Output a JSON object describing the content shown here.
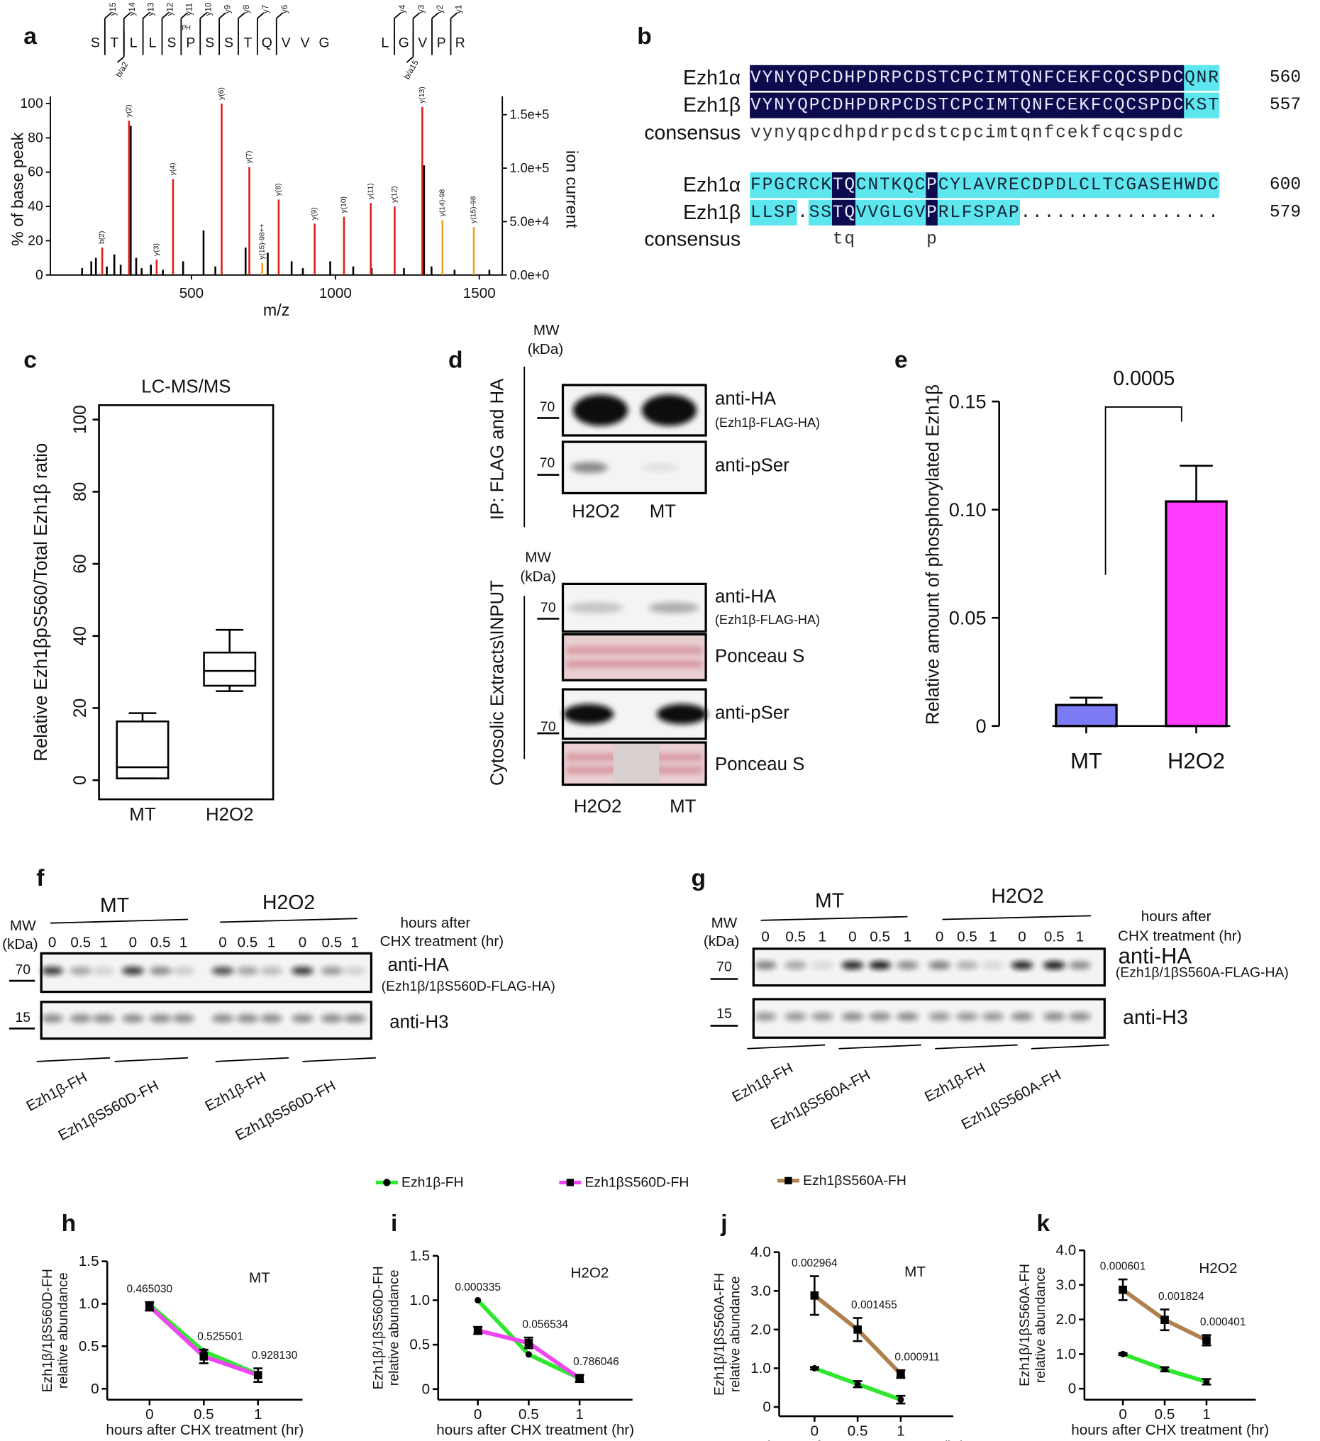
{
  "panel_labels": [
    "a",
    "b",
    "c",
    "d",
    "e",
    "f",
    "g",
    "h",
    "i",
    "j",
    "k"
  ],
  "peptide": {
    "residues": [
      "S",
      "T",
      "L",
      "L",
      "S",
      "P",
      "S",
      "S",
      "T",
      "Q",
      "V",
      "V",
      "G",
      "L",
      "G",
      "V",
      "P",
      "R"
    ],
    "y_ions": [
      "y15",
      "y14",
      "y13",
      "y12",
      "y11",
      "y10",
      "y9",
      "y8",
      "y7",
      "y6",
      "y4",
      "y3",
      "y2",
      "y1"
    ],
    "b_ions": [
      "b/a2",
      "b/a15"
    ],
    "modification": "PH"
  },
  "alignment": {
    "blocks": [
      {
        "rows": [
          {
            "name": "Ezh1α",
            "sequence": "VYNYQPCDHPDRPCDSTCPCIMTQNFCEKFCQCSPDCQNR",
            "end": 560
          },
          {
            "name": "Ezh1β",
            "sequence": "VYNYQPCDHPDRPCDSTCPCIMTQNFCEKFCQCSPDCKST",
            "end": 557
          },
          {
            "name": "consensus",
            "sequence": "vynyqpcdhpdrpcdstcpcimtqnfcekfcqcspdc"
          }
        ]
      },
      {
        "rows": [
          {
            "name": "Ezh1α",
            "sequence": "FPGCRCKTQCNTKQCPCYLAVRECDPDLCLTCGASEHWDC",
            "end": 600
          },
          {
            "name": "Ezh1β",
            "sequence": "LLSP.SSTQVVGLGVPRLFSPAP.................",
            "end": 579
          },
          {
            "name": "consensus",
            "sequence": "       tq      p"
          }
        ]
      }
    ]
  },
  "panel_d": {
    "ip": {
      "mw": "MW",
      "unit": "(kDa)",
      "label": "IP: FLAG and HA",
      "blots": [
        {
          "marker": "70",
          "label": "anti-HA",
          "sublabel": "(Ezh1β-FLAG-HA)"
        },
        {
          "marker": "70",
          "label": "anti-pSer"
        }
      ],
      "lanes": [
        "H2O2",
        "MT"
      ]
    },
    "input": {
      "mw": "MW",
      "unit": "(kDa)",
      "label": "Cytosolic Extracts\\INPUT",
      "blots": [
        {
          "marker": "70",
          "label": "anti-HA",
          "sublabel": "(Ezh1β-FLAG-HA)"
        },
        {
          "label": "Ponceau S"
        },
        {
          "marker": "70",
          "label": "anti-pSer"
        },
        {
          "label": "Ponceau S"
        }
      ],
      "lanes": [
        "H2O2",
        "MT"
      ]
    }
  },
  "panel_f": {
    "conditions": [
      "MT",
      "H2O2"
    ],
    "time_label": [
      "hours after",
      "CHX treatment (hr)"
    ],
    "mw": "MW",
    "unit": "(kDa)",
    "lanes": [
      "0",
      "0.5",
      "1",
      "0",
      "0.5",
      "1",
      "0",
      "0.5",
      "1",
      "0",
      "0.5",
      "1"
    ],
    "blots": [
      {
        "marker": "70",
        "label": "anti-HA",
        "sublabel": "(Ezh1β/1βS560D-FLAG-HA)"
      },
      {
        "marker": "15",
        "label": "anti-H3"
      }
    ],
    "groups": [
      "Ezh1β-FH",
      "Ezh1βS560D-FH",
      "Ezh1β-FH",
      "Ezh1βS560D-FH"
    ]
  },
  "panel_g": {
    "conditions": [
      "MT",
      "H2O2"
    ],
    "time_label": [
      "hours after",
      "CHX treatment (hr)"
    ],
    "mw": "MW",
    "unit": "(kDa)",
    "lanes": [
      "0",
      "0.5",
      "1",
      "0",
      "0.5",
      "1",
      "0",
      "0.5",
      "1",
      "0",
      "0.5",
      "1"
    ],
    "blots": [
      {
        "marker": "70",
        "label": "anti-HA",
        "sublabel": "(Ezh1β/1βS560A-FLAG-HA)"
      },
      {
        "marker": "15",
        "label": "anti-H3"
      }
    ],
    "groups": [
      "Ezh1β-FH",
      "Ezh1βS560A-FH",
      "Ezh1β-FH",
      "Ezh1βS560A-FH"
    ]
  },
  "legend": {
    "entries": [
      {
        "name": "Ezh1β-FH",
        "color": "#2ee82e",
        "marker": "circle"
      },
      {
        "name": "Ezh1βS560D-FH",
        "color": "#f046f0",
        "marker": "square"
      },
      {
        "name": "Ezh1βS560A-FH",
        "color": "#b07f4e",
        "marker": "square"
      }
    ]
  },
  "chart_data": [
    {
      "type": "spectrum",
      "xlabel": "m/z",
      "ylabel": "% of base peak",
      "y2label": "ion current",
      "xlim": [
        10,
        1580
      ],
      "xticks": [
        500,
        1000,
        1500
      ],
      "ylim": [
        0,
        100
      ],
      "yticks": [
        0,
        20,
        40,
        60,
        80,
        100
      ],
      "y2lim": [
        0,
        160400
      ],
      "y2ticks": [
        {
          "value": 0,
          "label": "0.0e+0"
        },
        {
          "value": 50000,
          "label": "5.0e+4"
        },
        {
          "value": 100000,
          "label": "1.0e+5"
        },
        {
          "value": 150000,
          "label": "1.5e+5"
        }
      ],
      "series": [
        {
          "color": "#000000",
          "x": [
            120,
            152,
            168,
            206,
            232,
            254,
            289,
            308,
            327,
            359,
            401,
            471,
            542,
            583,
            688,
            765,
            848,
            887,
            982,
            1062,
            1126,
            1238,
            1308,
            1334,
            1414,
            1535
          ],
          "values": [
            4,
            8,
            10,
            5,
            12,
            6,
            87,
            10,
            4,
            6,
            3,
            8,
            26,
            5,
            16,
            13,
            8,
            4,
            8,
            5,
            4,
            4,
            64,
            5,
            3,
            3
          ]
        },
        {
          "color": "#e0201b",
          "x": [
            190,
            283,
            379,
            436,
            605,
            701,
            803,
            928,
            1030,
            1123,
            1206,
            1302
          ],
          "values": [
            16,
            90,
            9,
            56,
            100,
            63,
            44,
            30,
            34,
            42,
            40,
            98
          ],
          "peak_labels": [
            "b(2)",
            "y(2)",
            "y(3)",
            "y(4)",
            "y(6)",
            "y(7)",
            "y(8)",
            "y(9)",
            "y(10)",
            "y(11)",
            "y(12)",
            "y(13)"
          ]
        },
        {
          "color": "#f0a020",
          "x": [
            746,
            1372,
            1481
          ],
          "values": [
            7,
            32,
            28
          ],
          "peak_labels": [
            "y(15)-98++",
            "y(14)-98",
            "y(15)-98"
          ]
        }
      ]
    },
    {
      "type": "box",
      "title": "LC-MS/MS",
      "ylabel": "Relative Ezh1βpS560/Total Ezh1β ratio",
      "categories": [
        "MT",
        "H2O2"
      ],
      "min": [
        0.5,
        24.7
      ],
      "q1": [
        0.5,
        26.2
      ],
      "median": [
        3.6,
        30.3
      ],
      "q3": [
        16.3,
        35.4
      ],
      "max": [
        18.6,
        41.7
      ],
      "ylim": [
        -5.3,
        104
      ],
      "yticks": [
        0,
        20,
        40,
        60,
        80,
        100
      ]
    },
    {
      "type": "bar",
      "ylabel": "Relative amount of  phosphorylated Ezh1β",
      "categories": [
        "MT",
        "H2O2"
      ],
      "values": [
        0.0097,
        0.1038
      ],
      "errors": [
        0.0034,
        0.0165
      ],
      "colors": [
        "#7b7cf5",
        "#ff3cff"
      ],
      "ylim": [
        0,
        0.15
      ],
      "yticks": [
        0,
        0.05,
        {
          "value": 0.1,
          "label": "0.10"
        },
        0.15
      ],
      "annotation": "0.0005"
    },
    {
      "type": "line",
      "condition": "MT",
      "ylabel": [
        "Ezh1β/1βS560D-FH",
        "relative abundance"
      ],
      "xlabel": "hours after CHX treatment (hr)",
      "x": [
        0,
        0.5,
        1
      ],
      "xlim": [
        -0.39,
        1.41
      ],
      "xticks": [
        0,
        0.5,
        1
      ],
      "ylim": [
        -0.13,
        1.5
      ],
      "yticks": [
        0,
        0.5,
        {
          "value": 1,
          "label": "1.0"
        },
        1.5
      ],
      "series": [
        {
          "color": "#2ee82e",
          "marker": "circle",
          "values": [
            0.99,
            0.44,
            0.17
          ]
        },
        {
          "color": "#f046f0",
          "marker": "square",
          "values": [
            0.97,
            0.38,
            0.16
          ],
          "errors": [
            0.05,
            0.08,
            0.08
          ]
        }
      ],
      "p_values": [
        "0.465030",
        "0.525501",
        "0.928130"
      ]
    },
    {
      "type": "line",
      "condition": "H2O2",
      "ylabel": [
        "Ezh1β/1βS560D-FH",
        "relative abundance"
      ],
      "xlabel": "hours after CHX treatment (hr)",
      "x": [
        0,
        0.5,
        1
      ],
      "xlim": [
        -0.39,
        1.52
      ],
      "xticks": [
        0,
        0.5,
        1
      ],
      "ylim": [
        -0.12,
        1.5
      ],
      "yticks": [
        0,
        0.5,
        {
          "value": 1,
          "label": "1.0"
        },
        1.5
      ],
      "series": [
        {
          "color": "#2ee82e",
          "marker": "circle",
          "values": [
            1.0,
            0.39,
            0.12
          ]
        },
        {
          "color": "#f046f0",
          "marker": "square",
          "values": [
            0.66,
            0.52,
            0.12
          ],
          "errors": [
            0.04,
            0.06,
            0.04
          ]
        }
      ],
      "p_values": [
        "0.000335",
        "0.056534",
        "0.786046"
      ]
    },
    {
      "type": "line",
      "condition": "MT",
      "ylabel": [
        "Ezh1β/1βS560A-FH",
        "relative abundance"
      ],
      "xlabel": "hours after CHX treatment (hr)",
      "x": [
        0,
        0.5,
        1
      ],
      "xlim": [
        -0.41,
        1.61
      ],
      "xticks": [
        0,
        0.5,
        1
      ],
      "ylim": [
        -0.24,
        4
      ],
      "yticks": [
        0,
        {
          "value": 1,
          "label": "1.0"
        },
        {
          "value": 2,
          "label": "2.0"
        },
        {
          "value": 3,
          "label": "3.0"
        },
        {
          "value": 4,
          "label": "4.0"
        }
      ],
      "series": [
        {
          "color": "#2ee82e",
          "marker": "circle",
          "values": [
            1.0,
            0.59,
            0.19
          ],
          "errors": [
            0.03,
            0.08,
            0.1
          ]
        },
        {
          "color": "#b07f4e",
          "marker": "square",
          "values": [
            2.88,
            2.0,
            0.85
          ],
          "errors": [
            0.5,
            0.3,
            0.1
          ]
        }
      ],
      "p_values": [
        "0.002964",
        "0.001455",
        "0.000911"
      ]
    },
    {
      "type": "line",
      "condition": "H2O2",
      "ylabel": [
        "Ezh1β/1βS560A-FH",
        "relative abundance"
      ],
      "xlabel": "hours after CHX treatment (hr)",
      "x": [
        0,
        0.5,
        1
      ],
      "xlim": [
        -0.46,
        1.59
      ],
      "xticks": [
        0,
        0.5,
        1
      ],
      "ylim": [
        -0.32,
        4
      ],
      "yticks": [
        0,
        {
          "value": 1,
          "label": "1.0"
        },
        {
          "value": 2,
          "label": "2.0"
        },
        {
          "value": 3,
          "label": "3.0"
        },
        {
          "value": 4,
          "label": "4.0"
        }
      ],
      "series": [
        {
          "color": "#2ee82e",
          "marker": "circle",
          "values": [
            1.0,
            0.56,
            0.2
          ],
          "errors": [
            0.03,
            0.06,
            0.08
          ]
        },
        {
          "color": "#b07f4e",
          "marker": "square",
          "values": [
            2.86,
            1.99,
            1.4
          ],
          "errors": [
            0.3,
            0.3,
            0.15
          ]
        }
      ],
      "p_values": [
        "0.000601",
        "0.001824",
        "0.000401"
      ]
    }
  ]
}
